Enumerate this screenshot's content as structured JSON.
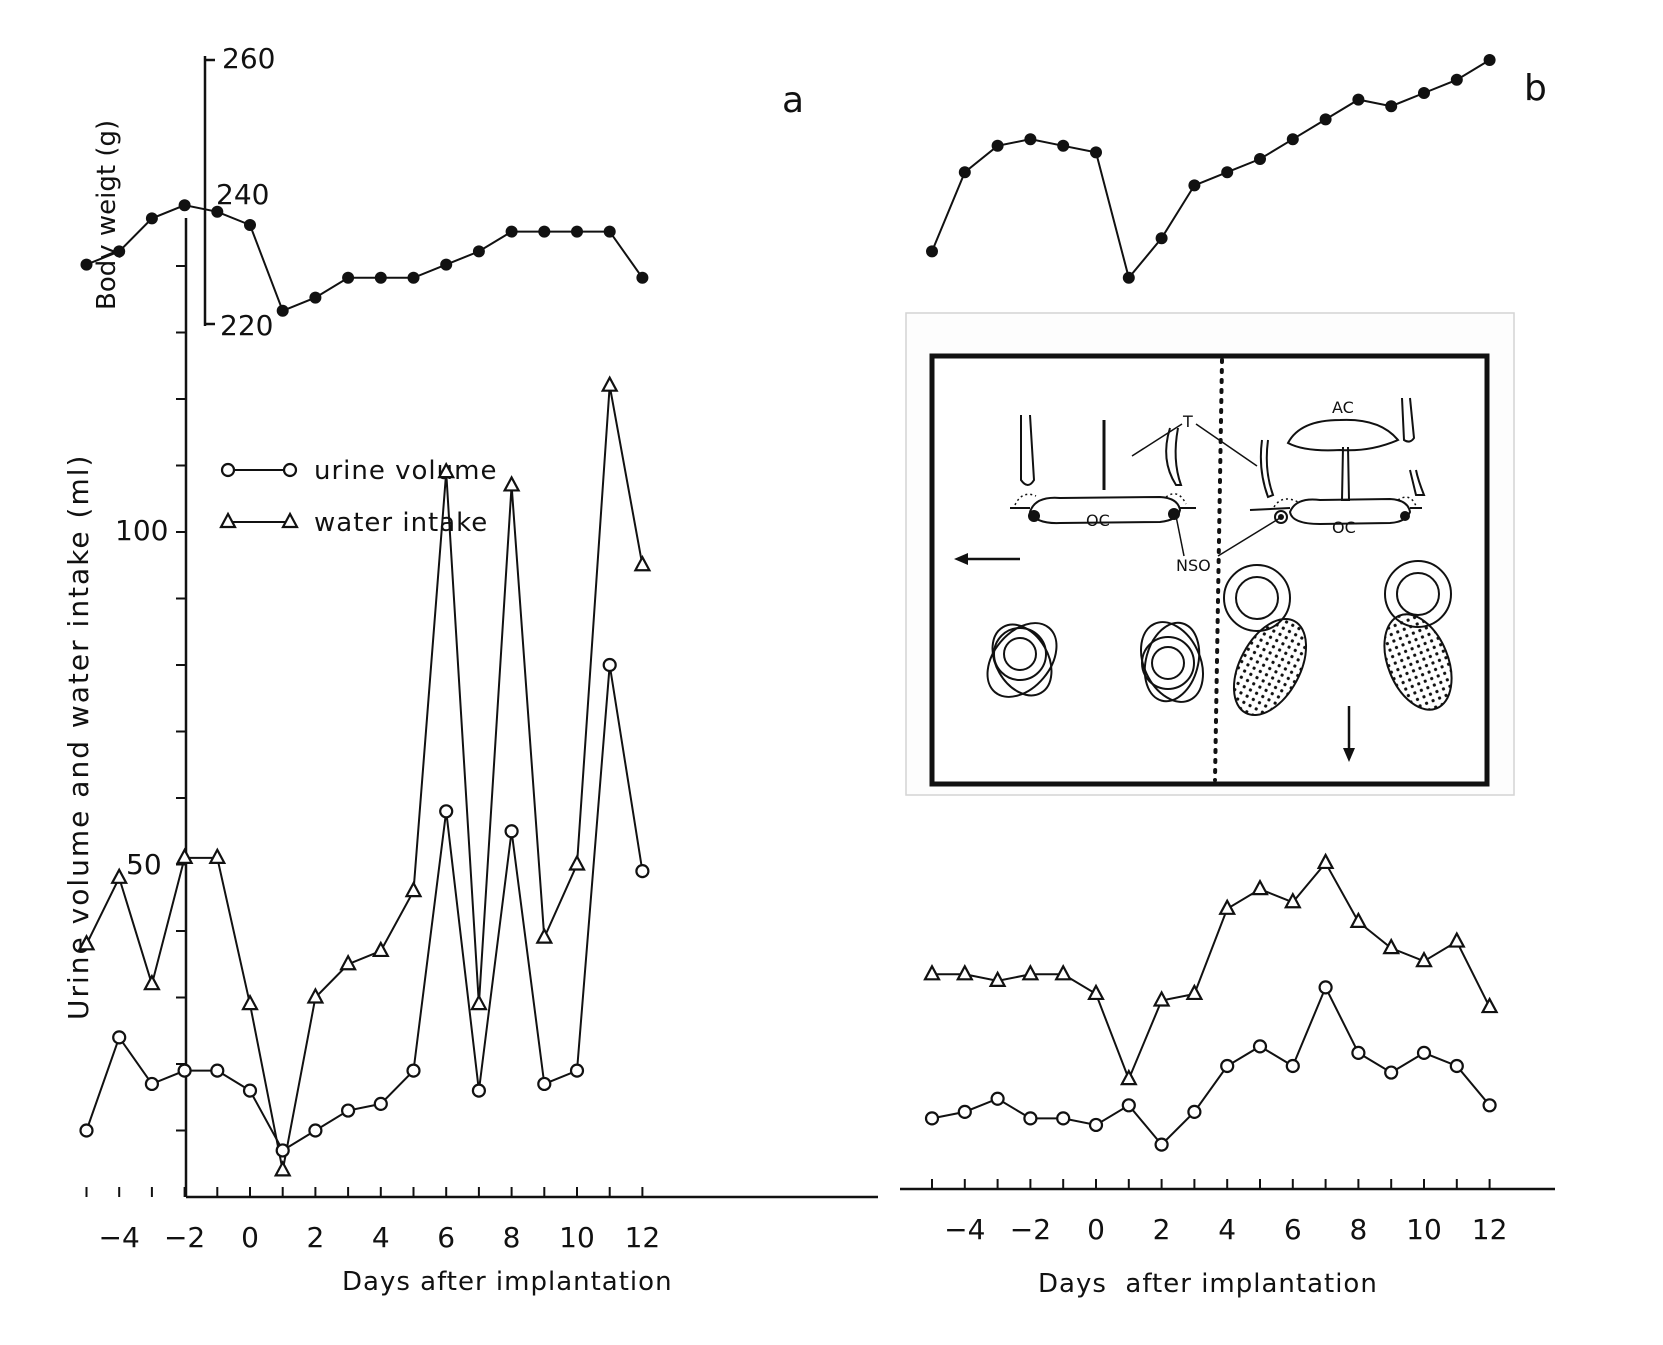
{
  "chart_data": [
    {
      "panel": "a",
      "type": "line",
      "xlabel": "Days after implantation",
      "ylabel": "Urine volume and water intake (ml)",
      "body_weight_label": "Body weigt (g)",
      "body_weight_ticks": [
        "260",
        "240",
        "220"
      ],
      "body_weight_ylim": [
        220,
        260
      ],
      "x_ticks": [
        "-4",
        "-2",
        "0",
        "2",
        "4",
        "6",
        "8",
        "10",
        "12"
      ],
      "y_ticks": [
        "50",
        "100"
      ],
      "ylim": [
        0,
        120
      ],
      "legend": {
        "urine": "urine volume",
        "water": "water intake",
        "placement": "upper-left"
      },
      "body_weight": {
        "x": [
          -5,
          -4,
          -3,
          -2,
          -1,
          0,
          1,
          2,
          3,
          4,
          5,
          6,
          7,
          8,
          9,
          10,
          11,
          12
        ],
        "values": [
          229,
          231,
          236,
          238,
          237,
          235,
          222,
          224,
          227,
          227,
          227,
          229,
          231,
          234,
          234,
          234,
          234,
          227
        ]
      },
      "series": [
        {
          "name": "water intake",
          "marker": "triangle",
          "x": [
            -5,
            -4,
            -3,
            -2,
            -1,
            0,
            1,
            2,
            3,
            4,
            5,
            6,
            7,
            8,
            9,
            10,
            11,
            12
          ],
          "values": [
            38,
            48,
            32,
            51,
            51,
            29,
            4,
            30,
            35,
            37,
            46,
            109,
            29,
            107,
            39,
            50,
            122,
            95
          ]
        },
        {
          "name": "urine volume",
          "marker": "circle",
          "x": [
            -5,
            -4,
            -3,
            -2,
            -1,
            0,
            1,
            2,
            3,
            4,
            5,
            6,
            7,
            8,
            9,
            10,
            11,
            12
          ],
          "values": [
            10,
            24,
            17,
            19,
            19,
            16,
            7,
            10,
            13,
            14,
            19,
            58,
            16,
            55,
            17,
            19,
            80,
            49
          ]
        }
      ]
    },
    {
      "panel": "b",
      "type": "line",
      "xlabel": "Days  after implantation",
      "x_ticks": [
        "-4",
        "-2",
        "0",
        "2",
        "4",
        "6",
        "8",
        "10",
        "12"
      ],
      "body_weight": {
        "x": [
          -5,
          -4,
          -3,
          -2,
          -1,
          0,
          1,
          2,
          3,
          4,
          5,
          6,
          7,
          8,
          9,
          10,
          11,
          12
        ],
        "values": [
          231,
          243,
          247,
          248,
          247,
          246,
          227,
          233,
          241,
          243,
          245,
          248,
          251,
          254,
          253,
          255,
          257,
          260
        ]
      },
      "series": [
        {
          "name": "water intake",
          "marker": "triangle",
          "x": [
            -5,
            -4,
            -3,
            -2,
            -1,
            0,
            1,
            2,
            3,
            4,
            5,
            6,
            7,
            8,
            9,
            10,
            11,
            12
          ],
          "values": [
            34,
            34,
            33,
            34,
            34,
            31,
            18,
            30,
            31,
            44,
            47,
            45,
            51,
            42,
            38,
            36,
            39,
            29
          ]
        },
        {
          "name": "urine volume",
          "marker": "circle",
          "x": [
            -5,
            -4,
            -3,
            -2,
            -1,
            0,
            1,
            2,
            3,
            4,
            5,
            6,
            7,
            8,
            9,
            10,
            11,
            12
          ],
          "values": [
            12,
            13,
            15,
            12,
            12,
            11,
            14,
            8,
            13,
            20,
            23,
            20,
            32,
            22,
            19,
            22,
            20,
            14
          ]
        }
      ]
    }
  ],
  "panel_labels": {
    "a": "a",
    "b": "b"
  },
  "inset": {
    "labels": {
      "T": "T",
      "AC": "AC",
      "OC_left": "OC",
      "OC_right": "OC",
      "NSO": "NSO"
    }
  }
}
